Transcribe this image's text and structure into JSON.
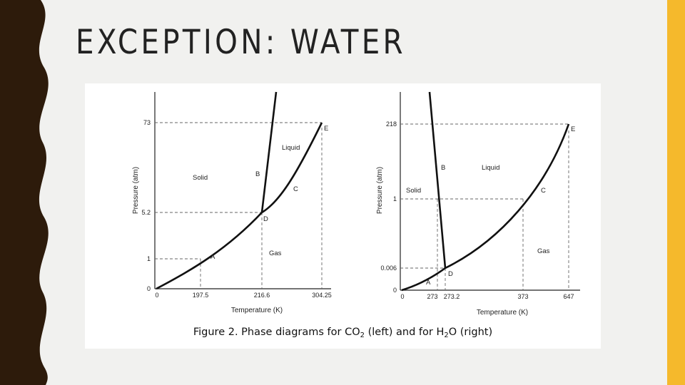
{
  "slide": {
    "title": "EXCEPTION: WATER",
    "colors": {
      "background": "#f1f1ef",
      "left_band": "#2d1b0b",
      "right_accent": "#f5b92c"
    }
  },
  "figure": {
    "caption_parts": {
      "prefix": "Figure 2. Phase diagrams for CO",
      "co2_sub": "2",
      "middle": " (left) and for H",
      "h2o_sub": "2",
      "suffix": "O (right)"
    },
    "co2": {
      "y_axis_label": "Pressure (atm)",
      "x_axis_label": "Temperature (K)",
      "y_ticks": [
        "73",
        "5.2",
        "1",
        "0"
      ],
      "x_ticks": [
        "0",
        "197.5",
        "216.6",
        "304.25"
      ],
      "regions": {
        "solid": "Solid",
        "liquid": "Liquid",
        "gas": "Gas"
      },
      "points": {
        "a": "A",
        "b": "B",
        "c": "C",
        "d": "D",
        "e": "E"
      }
    },
    "h2o": {
      "y_axis_label": "Pressure (atm)",
      "x_axis_label": "Temperature (K)",
      "y_ticks": [
        "218",
        "1",
        "0.006",
        "0"
      ],
      "x_ticks": [
        "0",
        "273",
        "273.2",
        "373",
        "647"
      ],
      "regions": {
        "solid": "Solid",
        "liquid": "Liquid",
        "gas": "Gas"
      },
      "points": {
        "a": "A",
        "b": "B",
        "c": "C",
        "d": "D",
        "e": "E"
      }
    }
  }
}
